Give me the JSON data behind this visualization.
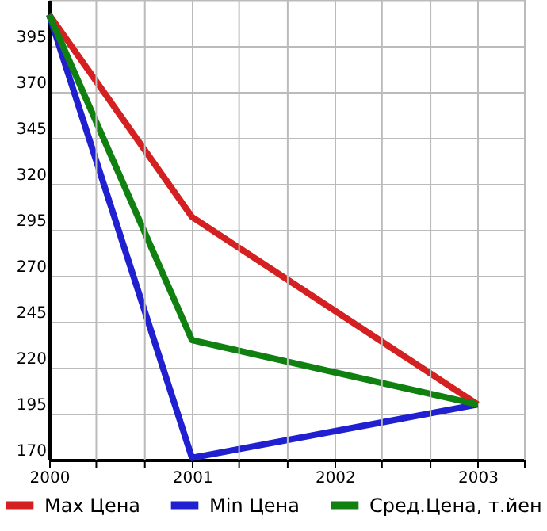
{
  "chart_data": {
    "type": "line",
    "x": [
      2000,
      2001,
      2003
    ],
    "series": [
      {
        "name": "Max Цена",
        "color": "#d42020",
        "values": [
          412,
          302,
          200
        ]
      },
      {
        "name": "Min Цена",
        "color": "#2020d0",
        "values": [
          412,
          171,
          200
        ]
      },
      {
        "name": "Сред.Цена, т.йен",
        "color": "#108010",
        "values": [
          412,
          235,
          200
        ]
      }
    ],
    "xlim": [
      2000,
      2003.33
    ],
    "xticks": [
      2000,
      {
        "value": 2000.33,
        "label": null
      },
      {
        "value": 2000.67,
        "label": null
      },
      2001,
      {
        "value": 2001.33,
        "label": null
      },
      {
        "value": 2001.67,
        "label": null
      },
      2002,
      {
        "value": 2002.33,
        "label": null
      },
      {
        "value": 2002.67,
        "label": null
      },
      2003,
      {
        "value": 2003.33,
        "label": null
      }
    ],
    "ylim": [
      170,
      420
    ],
    "yticks": [
      170,
      195,
      220,
      245,
      270,
      295,
      320,
      345,
      370,
      395,
      {
        "value": 420,
        "label": null
      }
    ],
    "grid": true,
    "legend": "bottom",
    "marker": "none",
    "line_style": "solid"
  }
}
